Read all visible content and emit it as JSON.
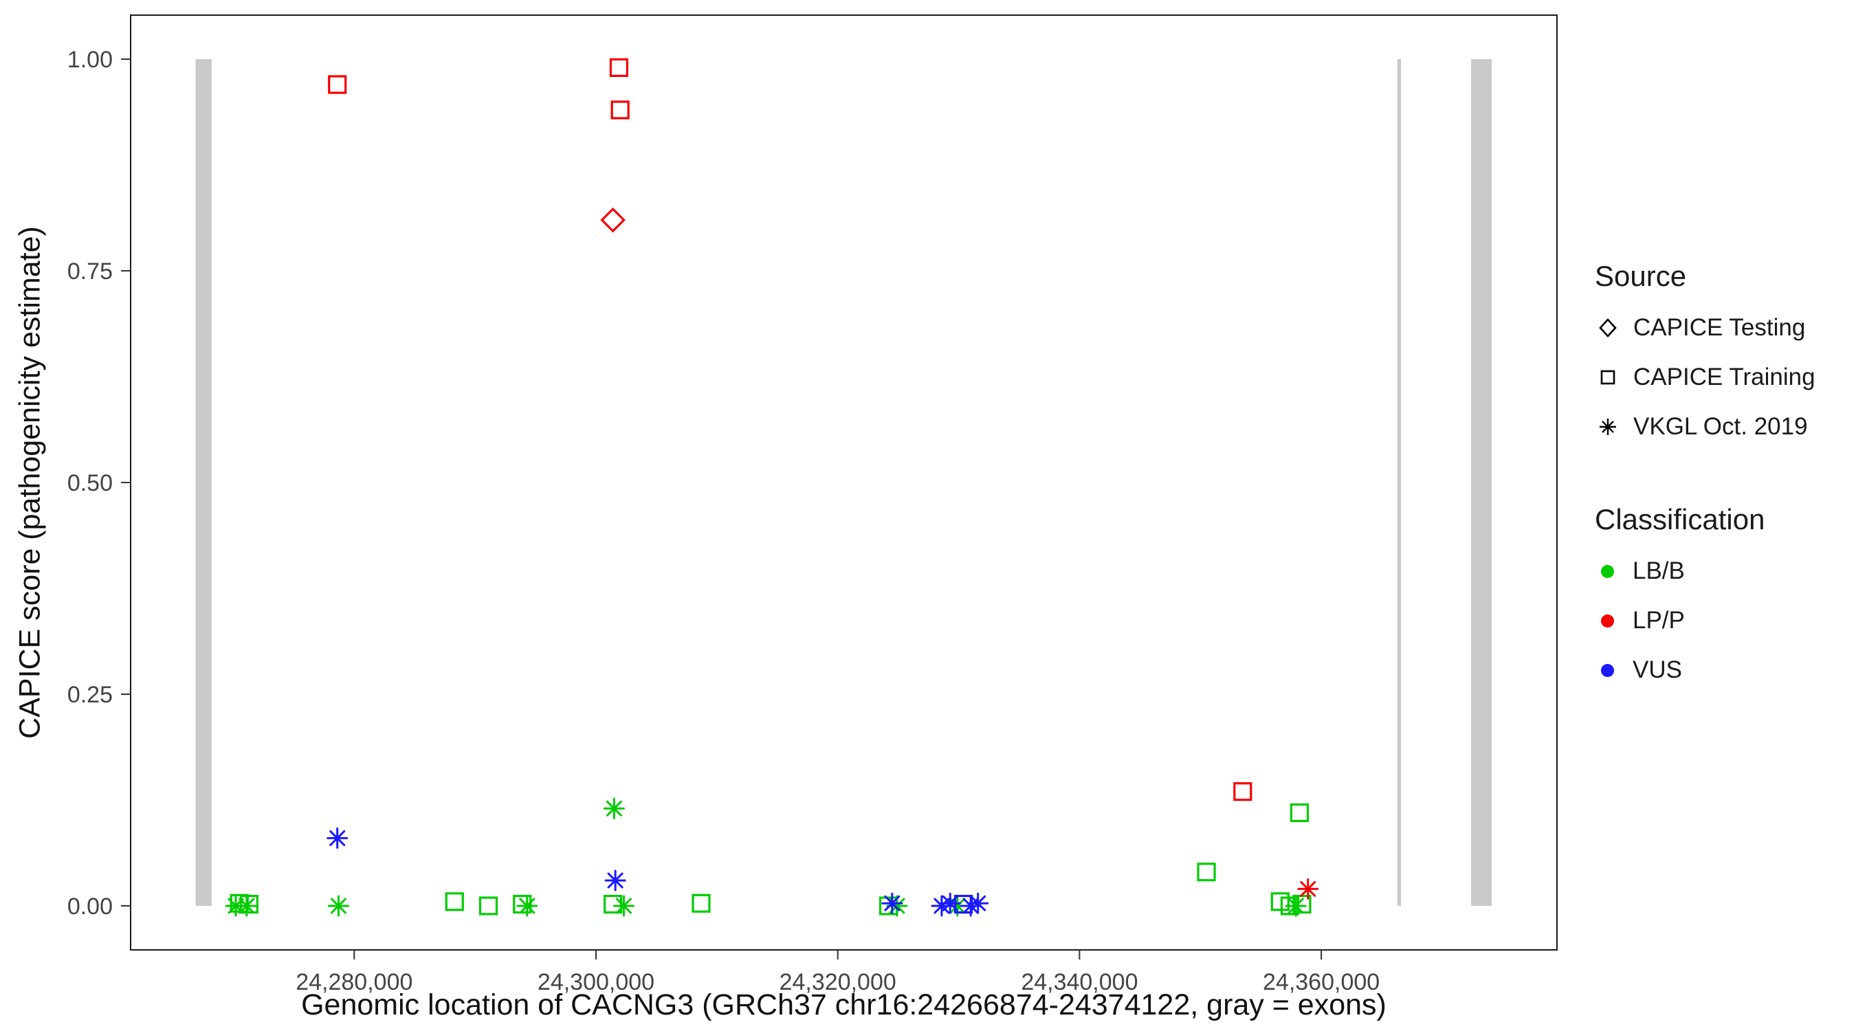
{
  "figure": {
    "xlabel": "Genomic location of CACNG3 (GRCh37 chr16:24266874-24374122, gray = exons)",
    "ylabel": "CAPICE score (pathogenicity estimate)"
  },
  "legend": {
    "source": {
      "title": "Source",
      "items": [
        {
          "label": "CAPICE Testing",
          "shape": "diamond"
        },
        {
          "label": "CAPICE Training",
          "shape": "square"
        },
        {
          "label": "VKGL Oct. 2019",
          "shape": "asterisk"
        }
      ]
    },
    "classification": {
      "title": "Classification",
      "items": [
        {
          "label": "LB/B",
          "color": "#00CC00"
        },
        {
          "label": "LP/P",
          "color": "#F40000"
        },
        {
          "label": "VUS",
          "color": "#1A1AFF"
        }
      ]
    }
  },
  "chart_data": {
    "type": "scatter",
    "title": "",
    "xlabel": "Genomic location of CACNG3 (GRCh37 chr16:24266874-24374122, gray = exons)",
    "ylabel": "CAPICE score (pathogenicity estimate)",
    "xlim": [
      24261500,
      24379500
    ],
    "ylim": [
      -0.052,
      1.052
    ],
    "grid": "off",
    "legend_position": "right",
    "x_ticks": [
      {
        "value": 24280000,
        "label": "24,280,000"
      },
      {
        "value": 24300000,
        "label": "24,300,000"
      },
      {
        "value": 24320000,
        "label": "24,320,000"
      },
      {
        "value": 24340000,
        "label": "24,340,000"
      },
      {
        "value": 24360000,
        "label": "24,360,000"
      }
    ],
    "y_ticks": [
      {
        "value": 0.0,
        "label": "0.00"
      },
      {
        "value": 0.25,
        "label": "0.25"
      },
      {
        "value": 0.5,
        "label": "0.50"
      },
      {
        "value": 0.75,
        "label": "0.75"
      },
      {
        "value": 1.0,
        "label": "1.00"
      }
    ],
    "exon_color": "#C9C9C9",
    "exons": [
      {
        "start": 24266874,
        "end": 24268200
      },
      {
        "start": 24366300,
        "end": 24366600
      },
      {
        "start": 24372400,
        "end": 24374100
      }
    ],
    "classification_colors": {
      "LB/B": "#00CC00",
      "LP/P": "#F40000",
      "VUS": "#1A1AFF"
    },
    "source_shapes": {
      "CAPICE Testing": "diamond",
      "CAPICE Training": "square",
      "VKGL Oct. 2019": "asterisk"
    },
    "points": [
      {
        "x": 24270200,
        "y": 0.0,
        "source": "VKGL Oct. 2019",
        "classification": "LB/B"
      },
      {
        "x": 24270500,
        "y": 0.003,
        "source": "CAPICE Training",
        "classification": "LB/B"
      },
      {
        "x": 24271100,
        "y": 0.0,
        "source": "VKGL Oct. 2019",
        "classification": "LB/B"
      },
      {
        "x": 24271300,
        "y": 0.002,
        "source": "CAPICE Training",
        "classification": "LB/B"
      },
      {
        "x": 24278700,
        "y": 0.0,
        "source": "VKGL Oct. 2019",
        "classification": "LB/B"
      },
      {
        "x": 24288300,
        "y": 0.005,
        "source": "CAPICE Training",
        "classification": "LB/B"
      },
      {
        "x": 24291100,
        "y": 0.0,
        "source": "CAPICE Training",
        "classification": "LB/B"
      },
      {
        "x": 24293900,
        "y": 0.002,
        "source": "CAPICE Training",
        "classification": "LB/B"
      },
      {
        "x": 24294300,
        "y": 0.0,
        "source": "VKGL Oct. 2019",
        "classification": "LB/B"
      },
      {
        "x": 24301500,
        "y": 0.115,
        "source": "VKGL Oct. 2019",
        "classification": "LB/B"
      },
      {
        "x": 24301400,
        "y": 0.002,
        "source": "CAPICE Training",
        "classification": "LB/B"
      },
      {
        "x": 24302300,
        "y": 0.0,
        "source": "VKGL Oct. 2019",
        "classification": "LB/B"
      },
      {
        "x": 24308700,
        "y": 0.003,
        "source": "CAPICE Training",
        "classification": "LB/B"
      },
      {
        "x": 24324200,
        "y": 0.0,
        "source": "CAPICE Training",
        "classification": "LB/B"
      },
      {
        "x": 24324900,
        "y": 0.0,
        "source": "VKGL Oct. 2019",
        "classification": "LB/B"
      },
      {
        "x": 24329900,
        "y": 0.0,
        "source": "VKGL Oct. 2019",
        "classification": "LB/B"
      },
      {
        "x": 24350500,
        "y": 0.04,
        "source": "CAPICE Training",
        "classification": "LB/B"
      },
      {
        "x": 24356600,
        "y": 0.005,
        "source": "CAPICE Training",
        "classification": "LB/B"
      },
      {
        "x": 24357400,
        "y": 0.0,
        "source": "CAPICE Training",
        "classification": "LB/B"
      },
      {
        "x": 24357900,
        "y": 0.0,
        "source": "VKGL Oct. 2019",
        "classification": "LB/B"
      },
      {
        "x": 24358400,
        "y": 0.002,
        "source": "CAPICE Training",
        "classification": "LB/B"
      },
      {
        "x": 24358200,
        "y": 0.11,
        "source": "CAPICE Training",
        "classification": "LB/B"
      },
      {
        "x": 24278600,
        "y": 0.08,
        "source": "VKGL Oct. 2019",
        "classification": "VUS"
      },
      {
        "x": 24301600,
        "y": 0.03,
        "source": "VKGL Oct. 2019",
        "classification": "VUS"
      },
      {
        "x": 24324500,
        "y": 0.003,
        "source": "VKGL Oct. 2019",
        "classification": "VUS"
      },
      {
        "x": 24328600,
        "y": 0.0,
        "source": "VKGL Oct. 2019",
        "classification": "VUS"
      },
      {
        "x": 24329300,
        "y": 0.003,
        "source": "VKGL Oct. 2019",
        "classification": "VUS"
      },
      {
        "x": 24330400,
        "y": 0.002,
        "source": "CAPICE Training",
        "classification": "VUS"
      },
      {
        "x": 24331000,
        "y": 0.0,
        "source": "VKGL Oct. 2019",
        "classification": "VUS"
      },
      {
        "x": 24331600,
        "y": 0.003,
        "source": "VKGL Oct. 2019",
        "classification": "VUS"
      },
      {
        "x": 24278600,
        "y": 0.97,
        "source": "CAPICE Training",
        "classification": "LP/P"
      },
      {
        "x": 24301900,
        "y": 0.99,
        "source": "CAPICE Training",
        "classification": "LP/P"
      },
      {
        "x": 24302000,
        "y": 0.94,
        "source": "CAPICE Training",
        "classification": "LP/P"
      },
      {
        "x": 24301400,
        "y": 0.81,
        "source": "CAPICE Testing",
        "classification": "LP/P"
      },
      {
        "x": 24353500,
        "y": 0.135,
        "source": "CAPICE Training",
        "classification": "LP/P"
      },
      {
        "x": 24358900,
        "y": 0.02,
        "source": "VKGL Oct. 2019",
        "classification": "LP/P"
      }
    ]
  }
}
